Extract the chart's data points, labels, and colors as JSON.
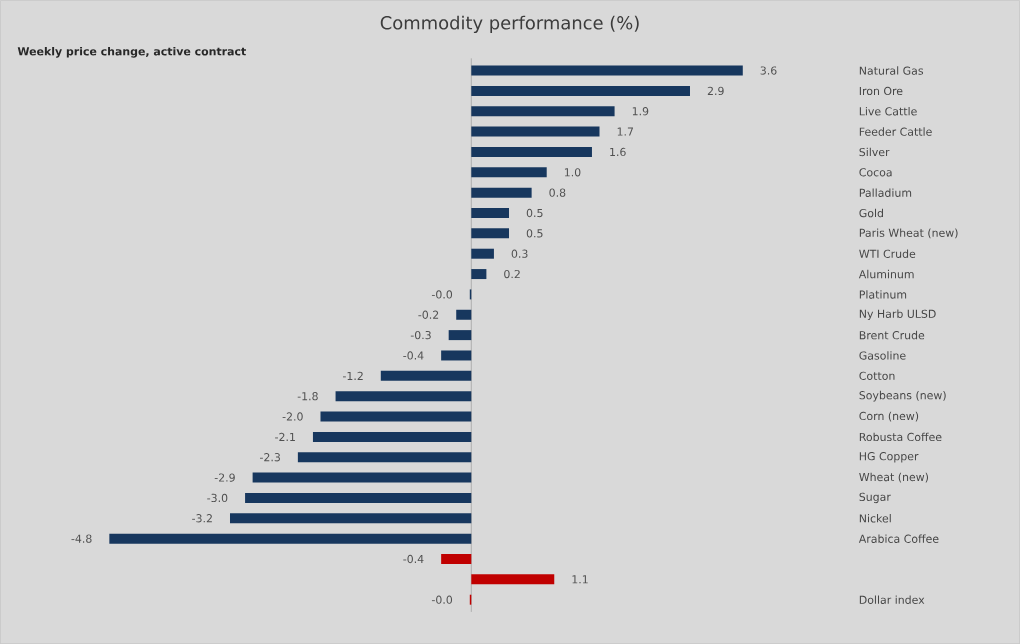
{
  "chart_data": {
    "type": "bar",
    "orientation": "horizontal",
    "title": "Commodity performance (%)",
    "subtitle": "Weekly price change, active contract",
    "categories": [
      "Natural Gas",
      "Iron Ore",
      "Live Cattle",
      "Feeder Cattle",
      "Silver",
      "Cocoa",
      "Palladium",
      "Gold",
      "Paris Wheat (new)",
      "WTI Crude",
      "Aluminum",
      "Platinum",
      "Ny Harb ULSD",
      "Brent Crude",
      "Gasoline",
      "Cotton",
      "Soybeans (new)",
      "Corn (new)",
      "Robusta Coffee",
      "HG Copper",
      "Wheat (new)",
      "Sugar",
      "Nickel",
      "Arabica Coffee",
      null,
      null,
      "Dollar index"
    ],
    "values": [
      3.6,
      2.9,
      1.9,
      1.7,
      1.6,
      1.0,
      0.8,
      0.5,
      0.5,
      0.3,
      0.2,
      -0.02,
      -0.2,
      -0.3,
      -0.4,
      -1.2,
      -1.8,
      -2.0,
      -2.1,
      -2.3,
      -2.9,
      -3.0,
      -3.2,
      -4.8,
      -0.4,
      1.1,
      -0.02
    ],
    "value_labels": [
      "3.6",
      "2.9",
      "1.9",
      "1.7",
      "1.6",
      "1.0",
      "0.8",
      "0.5",
      "0.5",
      "0.3",
      "0.2",
      "-0.0",
      "-0.2",
      "-0.3",
      "-0.4",
      "-1.2",
      "-1.8",
      "-2.0",
      "-2.1",
      "-2.3",
      "-2.9",
      "-3.0",
      "-3.2",
      "-4.8",
      "-0.4",
      "1.1",
      "-0.0"
    ],
    "colors": [
      "#17375e",
      "#17375e",
      "#17375e",
      "#17375e",
      "#17375e",
      "#17375e",
      "#17375e",
      "#17375e",
      "#17375e",
      "#17375e",
      "#17375e",
      "#17375e",
      "#17375e",
      "#17375e",
      "#17375e",
      "#17375e",
      "#17375e",
      "#17375e",
      "#17375e",
      "#17375e",
      "#17375e",
      "#17375e",
      "#17375e",
      "#17375e",
      "#c00000",
      "#c00000",
      "#c00000"
    ]
  }
}
